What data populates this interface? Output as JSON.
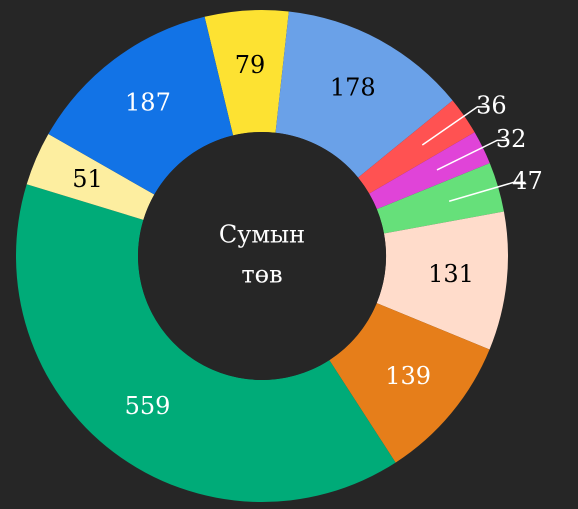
{
  "chart_data": {
    "type": "donut",
    "center_label": [
      "Сумын",
      "төв"
    ],
    "values": [
      79,
      178,
      36,
      32,
      47,
      131,
      139,
      559,
      51,
      187
    ],
    "colors": [
      "#fde232",
      "#6aa1e8",
      "#ff5252",
      "#e044d8",
      "#66e07a",
      "#ffdccb",
      "#e67e1a",
      "#00ab78",
      "#fdeea0",
      "#1273e6"
    ]
  }
}
